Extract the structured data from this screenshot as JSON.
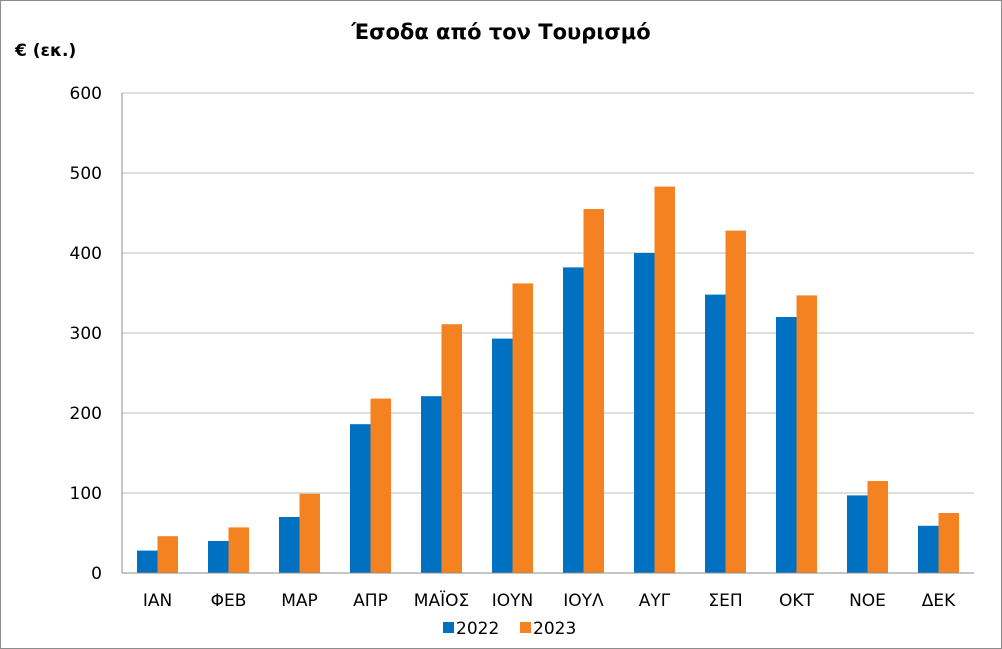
{
  "chart_data": {
    "type": "bar",
    "title": "Έσοδα από τον Τουρισμό",
    "ylabel": "€ (εκ.)",
    "xlabel": "",
    "categories": [
      "ΙΑΝ",
      "ΦΕΒ",
      "ΜΑΡ",
      "ΑΠΡ",
      "ΜΑΪΟΣ",
      "ΙΟΥΝ",
      "ΙΟΥΛ",
      "ΑΥΓ",
      "ΣΕΠ",
      "ΟΚΤ",
      "ΝΟΕ",
      "ΔΕΚ"
    ],
    "series": [
      {
        "name": "2022",
        "color": "#0070C0",
        "values": [
          28,
          40,
          70,
          186,
          221,
          293,
          382,
          400,
          348,
          320,
          97,
          59
        ]
      },
      {
        "name": "2023",
        "color": "#F58220",
        "values": [
          46,
          57,
          99,
          218,
          311,
          362,
          455,
          483,
          428,
          347,
          115,
          75
        ]
      }
    ],
    "ylim": [
      0,
      600
    ],
    "yticks": [
      "0",
      "100",
      "200",
      "300",
      "400",
      "500",
      "600"
    ],
    "grid": true,
    "legend_position": "bottom"
  }
}
